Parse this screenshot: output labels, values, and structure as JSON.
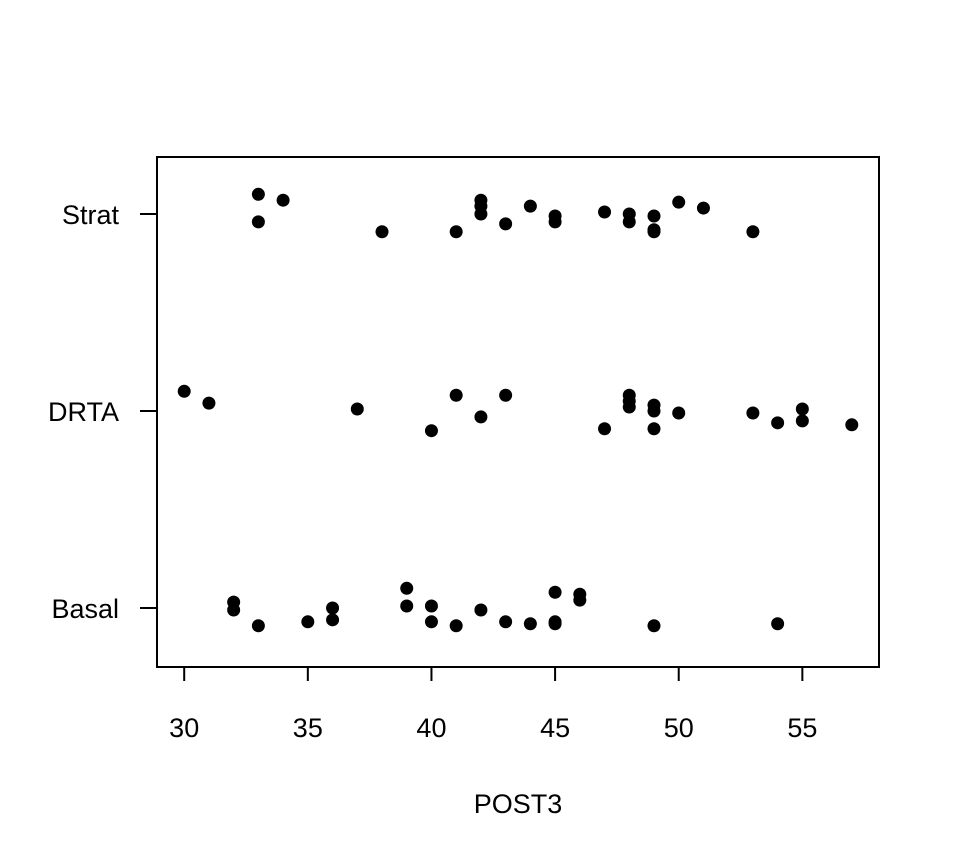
{
  "chart_data": {
    "type": "scatter",
    "title": "",
    "xlabel": "POST3",
    "ylabel": "",
    "xlim": [
      28.9,
      58.1
    ],
    "x_ticks": [
      30,
      35,
      40,
      45,
      50,
      55
    ],
    "categories": [
      "Basal",
      "DRTA",
      "Strat"
    ],
    "grid": false,
    "jitter": true,
    "series": [
      {
        "category": "Basal",
        "points": [
          {
            "x": 32,
            "y": 0.03
          },
          {
            "x": 32,
            "y": -0.01
          },
          {
            "x": 33,
            "y": -0.09
          },
          {
            "x": 35,
            "y": -0.07
          },
          {
            "x": 36,
            "y": 0.0
          },
          {
            "x": 36,
            "y": -0.06
          },
          {
            "x": 39,
            "y": 0.1
          },
          {
            "x": 39,
            "y": 0.01
          },
          {
            "x": 40,
            "y": 0.01
          },
          {
            "x": 40,
            "y": -0.07
          },
          {
            "x": 41,
            "y": -0.09
          },
          {
            "x": 42,
            "y": -0.01
          },
          {
            "x": 43,
            "y": -0.07
          },
          {
            "x": 44,
            "y": -0.08
          },
          {
            "x": 45,
            "y": 0.08
          },
          {
            "x": 45,
            "y": -0.07
          },
          {
            "x": 45,
            "y": -0.08
          },
          {
            "x": 46,
            "y": 0.07
          },
          {
            "x": 46,
            "y": 0.04
          },
          {
            "x": 49,
            "y": -0.09
          },
          {
            "x": 54,
            "y": -0.08
          }
        ]
      },
      {
        "category": "DRTA",
        "points": [
          {
            "x": 30,
            "y": 0.1
          },
          {
            "x": 31,
            "y": 0.04
          },
          {
            "x": 37,
            "y": 0.01
          },
          {
            "x": 40,
            "y": -0.1
          },
          {
            "x": 41,
            "y": 0.08
          },
          {
            "x": 42,
            "y": -0.03
          },
          {
            "x": 43,
            "y": 0.08
          },
          {
            "x": 47,
            "y": -0.09
          },
          {
            "x": 48,
            "y": 0.08
          },
          {
            "x": 48,
            "y": 0.05
          },
          {
            "x": 48,
            "y": 0.02
          },
          {
            "x": 49,
            "y": 0.03
          },
          {
            "x": 49,
            "y": 0.0
          },
          {
            "x": 49,
            "y": -0.09
          },
          {
            "x": 50,
            "y": -0.01
          },
          {
            "x": 53,
            "y": -0.01
          },
          {
            "x": 54,
            "y": -0.06
          },
          {
            "x": 55,
            "y": 0.01
          },
          {
            "x": 55,
            "y": -0.05
          },
          {
            "x": 57,
            "y": -0.07
          }
        ]
      },
      {
        "category": "Strat",
        "points": [
          {
            "x": 33,
            "y": 0.1
          },
          {
            "x": 33,
            "y": -0.04
          },
          {
            "x": 34,
            "y": 0.07
          },
          {
            "x": 38,
            "y": -0.09
          },
          {
            "x": 41,
            "y": -0.09
          },
          {
            "x": 42,
            "y": 0.07
          },
          {
            "x": 42,
            "y": 0.04
          },
          {
            "x": 42,
            "y": 0.0
          },
          {
            "x": 43,
            "y": -0.05
          },
          {
            "x": 44,
            "y": 0.04
          },
          {
            "x": 45,
            "y": -0.01
          },
          {
            "x": 45,
            "y": -0.04
          },
          {
            "x": 47,
            "y": 0.01
          },
          {
            "x": 48,
            "y": 0.0
          },
          {
            "x": 48,
            "y": -0.04
          },
          {
            "x": 49,
            "y": -0.01
          },
          {
            "x": 49,
            "y": -0.08
          },
          {
            "x": 49,
            "y": -0.09
          },
          {
            "x": 50,
            "y": 0.06
          },
          {
            "x": 51,
            "y": 0.03
          },
          {
            "x": 53,
            "y": -0.09
          }
        ]
      }
    ]
  }
}
